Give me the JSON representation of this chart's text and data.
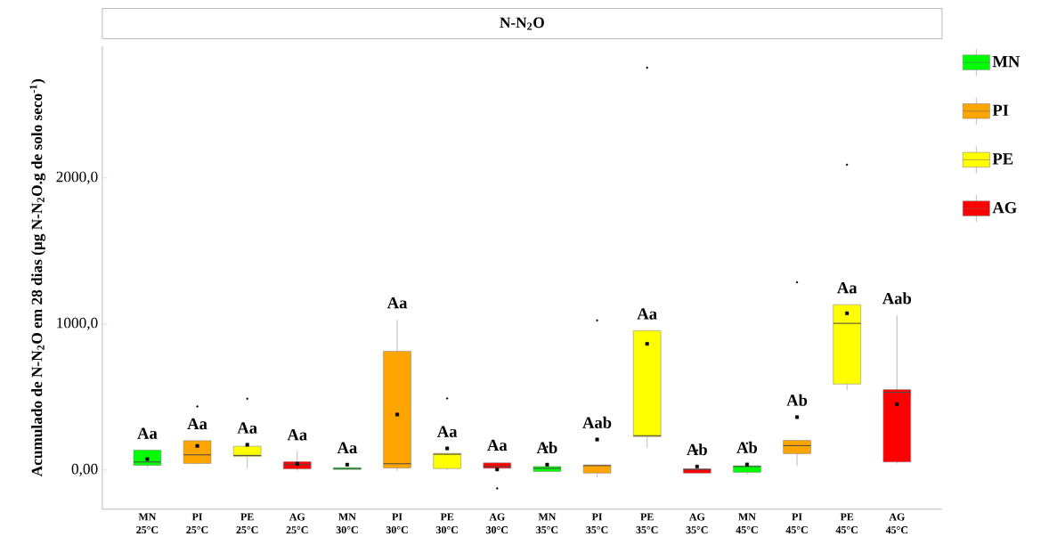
{
  "chart_data": {
    "type": "box",
    "title": "N-N$_{2}$O",
    "ylabel": "Acumulado de N-N$_{2}$O em 28 dias (µg N-N$_{2}$O.g de solo seco$^{-1}$)",
    "categories": [
      "MN 25°C",
      "PI 25°C",
      "PE 25°C",
      "AG 25°C",
      "MN 30°C",
      "PI 30°C",
      "PE 30°C",
      "AG 30°C",
      "MN 35°C",
      "PI 35°C",
      "PE 35°C",
      "AG 35°C",
      "MN 45°C",
      "PI 45°C",
      "PE 45°C",
      "AG 45°C"
    ],
    "series": [
      {
        "name": "MN",
        "color": "#00ff00",
        "boxes": [
          {
            "low": 20,
            "q1": 32,
            "median": 55,
            "q3": 136,
            "high": 136,
            "mean": 75
          },
          null,
          null,
          null,
          {
            "low": 4,
            "q1": 4,
            "median": 10,
            "q3": 16,
            "high": 16,
            "mean": 37
          },
          null,
          null,
          null,
          {
            "low": -10,
            "q1": -10,
            "median": 12,
            "q3": 24,
            "high": 24,
            "mean": 37,
            "outliers": [
              159
            ]
          },
          null,
          null,
          null,
          {
            "low": -32,
            "q1": -16,
            "median": 24,
            "q3": 29,
            "high": 29,
            "mean": 38,
            "outliers": [
              183
            ]
          },
          null,
          null,
          null
        ]
      },
      {
        "name": "PI",
        "color": "#ffa500",
        "boxes": [
          null,
          {
            "low": 40,
            "q1": 45,
            "median": 104,
            "q3": 201,
            "high": 201,
            "mean": 165,
            "outliers": [
              435
            ]
          },
          null,
          null,
          null,
          {
            "low": -8,
            "q1": 14,
            "median": 43,
            "q3": 813,
            "high": 1029,
            "mean": 380
          },
          null,
          null,
          null,
          {
            "low": -51,
            "q1": -21,
            "median": 30,
            "q3": 35,
            "high": 35,
            "mean": 209,
            "outliers": [
              1024
            ]
          },
          null,
          null,
          null,
          {
            "low": 29,
            "q1": 112,
            "median": 167,
            "q3": 203,
            "high": 203,
            "mean": 362,
            "outliers": [
              1285
            ]
          },
          null,
          null
        ]
      },
      {
        "name": "PE",
        "color": "#ffff00",
        "boxes": [
          null,
          null,
          {
            "low": 12,
            "q1": 93,
            "median": 100,
            "q3": 163,
            "high": 163,
            "mean": 173,
            "outliers": [
              488
            ]
          },
          null,
          null,
          null,
          {
            "low": 0,
            "q1": 10,
            "median": 108,
            "q3": 114,
            "high": 114,
            "mean": 148,
            "outliers": [
              490
            ]
          },
          null,
          null,
          null,
          {
            "low": 152,
            "q1": 229,
            "median": 235,
            "q3": 954,
            "high": 954,
            "mean": 864,
            "outliers": [
              2754
            ]
          },
          null,
          null,
          null,
          {
            "low": 545,
            "q1": 589,
            "median": 1004,
            "q3": 1132,
            "high": 1132,
            "mean": 1073,
            "outliers": [
              2090
            ]
          },
          null
        ]
      },
      {
        "name": "AG",
        "color": "#ff0000",
        "boxes": [
          null,
          null,
          null,
          {
            "low": -6,
            "q1": 8,
            "median": 37,
            "q3": 57,
            "high": 126,
            "mean": 43
          },
          null,
          null,
          null,
          {
            "low": 0,
            "q1": 12,
            "median": 24,
            "q3": 49,
            "high": 55,
            "mean": 4,
            "outliers": [
              -126
            ]
          },
          null,
          null,
          null,
          {
            "low": -21,
            "q1": -21,
            "median": 4,
            "q3": 8,
            "high": 8,
            "mean": 24,
            "outliers": [
              135
            ]
          },
          null,
          null,
          null,
          {
            "low": 45,
            "q1": 55,
            "median": 532,
            "q3": 551,
            "high": 1059,
            "mean": 451
          }
        ]
      }
    ],
    "ylim": [
      -268,
      2902
    ],
    "yticks": [
      {
        "value": 0,
        "label": "0,00"
      },
      {
        "value": 1000,
        "label": "1000,0"
      },
      {
        "value": 2000,
        "label": "2000,0"
      }
    ],
    "legend": "right",
    "annotations": [
      "Aa",
      "Aa",
      "Aa",
      "Aa",
      "Aa",
      "Aa",
      "Aa",
      "Aa",
      "Ab",
      "Aab",
      "Aa",
      "Ab",
      "Ab",
      "Ab",
      "Aa",
      "Aab"
    ]
  }
}
